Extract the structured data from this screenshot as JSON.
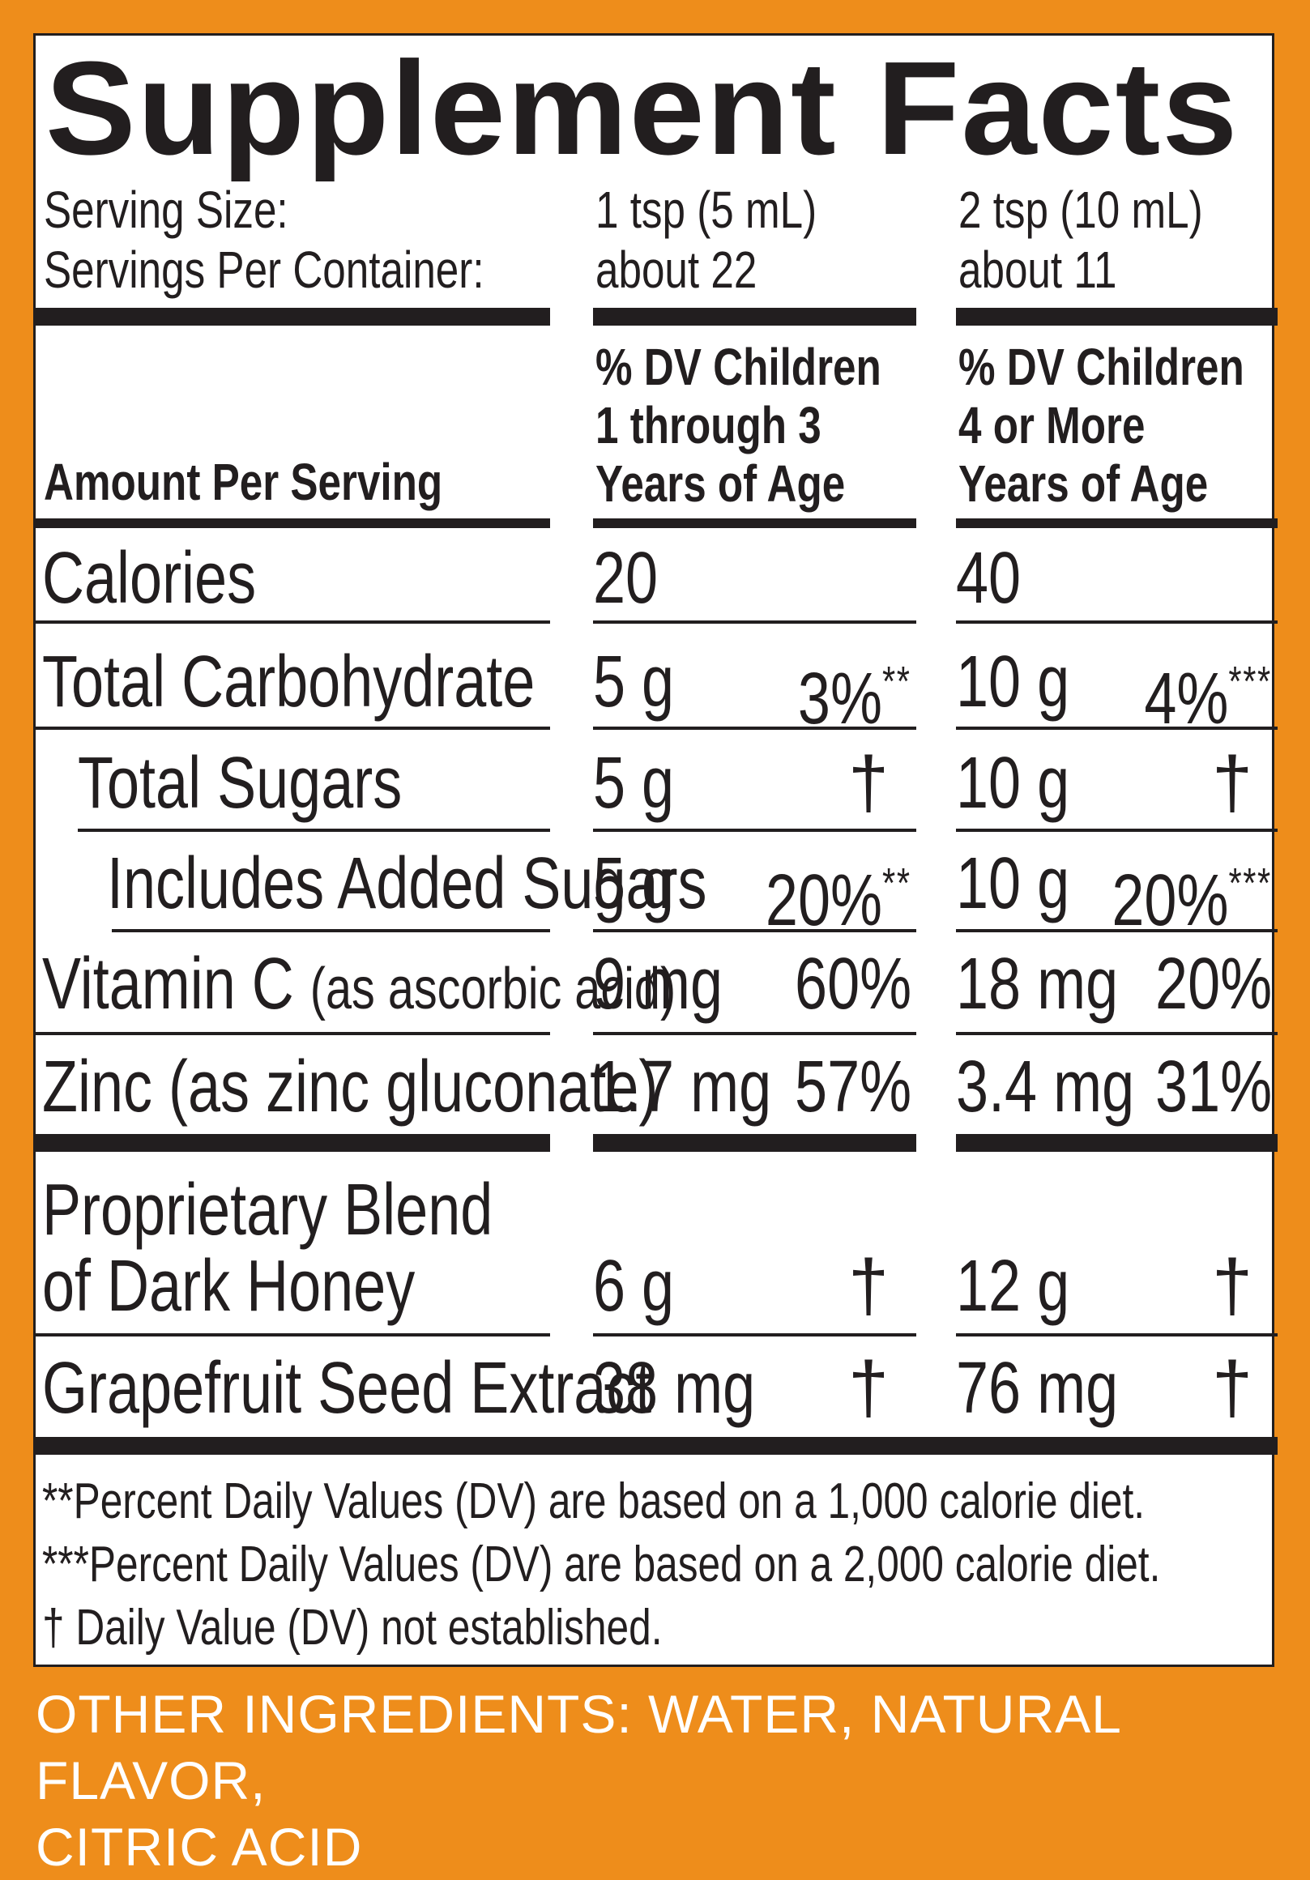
{
  "title": "Supplement Facts",
  "serving": {
    "size_label": "Serving Size:",
    "servings_label": "Servings Per Container:",
    "col1_size": "1 tsp (5 mL)",
    "col1_servings": "about 22",
    "col2_size": "2 tsp (10 mL)",
    "col2_servings": "about 11"
  },
  "header": {
    "amount_label": "Amount Per Serving",
    "col1": [
      "% DV Children",
      "1 through 3",
      "Years of Age"
    ],
    "col2": [
      "% DV Children",
      "4 or More",
      "Years of Age"
    ]
  },
  "rows": {
    "calories": {
      "label": "Calories",
      "c1_amt": "20",
      "c2_amt": "40"
    },
    "carb": {
      "label": "Total Carbohydrate",
      "c1_amt": "5 g",
      "c1_dv": "3%",
      "c1_mark": "**",
      "c2_amt": "10 g",
      "c2_dv": "4%",
      "c2_mark": "***"
    },
    "sugars": {
      "label": "Total Sugars",
      "c1_amt": "5 g",
      "c1_dv": "†",
      "c2_amt": "10 g",
      "c2_dv": "†"
    },
    "added": {
      "label": "Includes Added Sugars",
      "c1_amt": "5 g",
      "c1_dv": "20%",
      "c1_mark": "**",
      "c2_amt": "10 g",
      "c2_dv": "20%",
      "c2_mark": "***"
    },
    "vitc": {
      "label": "Vitamin C",
      "label_sub": "(as ascorbic acid)",
      "c1_amt": "9 mg",
      "c1_dv": "60%",
      "c2_amt": "18 mg",
      "c2_dv": "20%"
    },
    "zinc": {
      "label": "Zinc (as zinc gluconate)",
      "c1_amt": "1.7 mg",
      "c1_dv": "57%",
      "c2_amt": "3.4 mg",
      "c2_dv": "31%"
    },
    "honey": {
      "label_1": "Proprietary Blend",
      "label_2": "of Dark Honey",
      "c1_amt": "6 g",
      "c1_dv": "†",
      "c2_amt": "12 g",
      "c2_dv": "†"
    },
    "gse": {
      "label": "Grapefruit Seed Extract",
      "c1_amt": "38 mg",
      "c1_dv": "†",
      "c2_amt": "76 mg",
      "c2_dv": "†"
    }
  },
  "footnotes": [
    "**Percent Daily Values (DV) are based on a 1,000 calorie diet.",
    "***Percent Daily Values (DV) are based on a 2,000 calorie diet.",
    "† Daily Value (DV) not established."
  ],
  "other_ingredients": [
    "OTHER INGREDIENTS: WATER, NATURAL FLAVOR,",
    "CITRIC ACID"
  ],
  "colors": {
    "background": "#ee8d1b",
    "ink": "#221e1f",
    "panel": "#ffffff"
  }
}
